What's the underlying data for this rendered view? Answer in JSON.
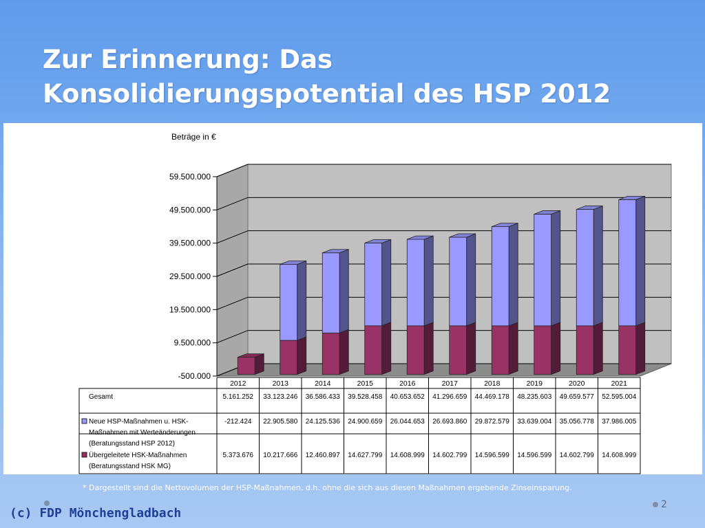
{
  "slide": {
    "title_line1": "Zur Erinnerung: Das",
    "title_line2": "Konsolidierungspotential des HSP 2012",
    "footnote": "* Dargestellt sind die Nettovolumen der HSP-Maßnahmen, d.h. ohne die sich aus diesen Maßnahmen ergebende Zinseinsparung.",
    "brand": "(c) FDP Mönchengladbach",
    "page_number": "2"
  },
  "colors": {
    "top_series": "#9999ff",
    "bottom_series": "#993366",
    "wall": "#c0c0c0"
  },
  "chart_data": {
    "type": "bar",
    "stacked": true,
    "three_d": true,
    "title": "",
    "ylabel": "Beträge in €",
    "ylim": [
      -500000,
      59500000
    ],
    "ytick_labels": [
      "-500.000",
      "9.500.000",
      "19.500.000",
      "29.500.000",
      "39.500.000",
      "49.500.000",
      "59.500.000"
    ],
    "ytick_values": [
      -500000,
      9500000,
      19500000,
      29500000,
      39500000,
      49500000,
      59500000
    ],
    "grid": true,
    "categories": [
      "2012",
      "2013",
      "2014",
      "2015",
      "2016",
      "2017",
      "2018",
      "2019",
      "2020",
      "2021"
    ],
    "series": [
      {
        "name": "Übergeleitete HSK-Maßnahmen (Beratungsstand HSK MG)",
        "name_lines": [
          "Übergeleitete HSK-Maßnahmen",
          "(Beratungsstand HSK MG)"
        ],
        "values": [
          5373676,
          10217666,
          12460897,
          14627799,
          14608999,
          14602799,
          14596599,
          14596599,
          14602799,
          14608999
        ],
        "labels": [
          "5.373.676",
          "10.217.666",
          "12.460.897",
          "14.627.799",
          "14.608.999",
          "14.602.799",
          "14.596.599",
          "14.596.599",
          "14.602.799",
          "14.608.999"
        ]
      },
      {
        "name": "Neue HSP-Maßnahmen u. HSK-Maßnahmen mit Werteänderungen (Beratungsstand HSP 2012)",
        "name_lines": [
          "Neue HSP-Maßnahmen u. HSK-",
          "Maßnahmen mit Werteänderungen",
          "(Beratungsstand HSP 2012)"
        ],
        "values": [
          -212424,
          22905580,
          24125536,
          24900659,
          26044653,
          26693860,
          29872579,
          33639004,
          35056778,
          37986005
        ],
        "labels": [
          "-212.424",
          "22.905.580",
          "24.125.536",
          "24.900.659",
          "26.044.653",
          "26.693.860",
          "29.872.579",
          "33.639.004",
          "35.056.778",
          "37.986.005"
        ]
      }
    ],
    "table": {
      "total_label": "Gesamt",
      "totals": [
        5161252,
        33123246,
        36586433,
        39528458,
        40653652,
        41296659,
        44469178,
        48235603,
        49659577,
        52595004
      ],
      "total_labels": [
        "5.161.252",
        "33.123.246",
        "36.586.433",
        "39.528.458",
        "40.653.652",
        "41.296.659",
        "44.469.178",
        "48.235.603",
        "49.659.577",
        "52.595.004"
      ]
    }
  }
}
